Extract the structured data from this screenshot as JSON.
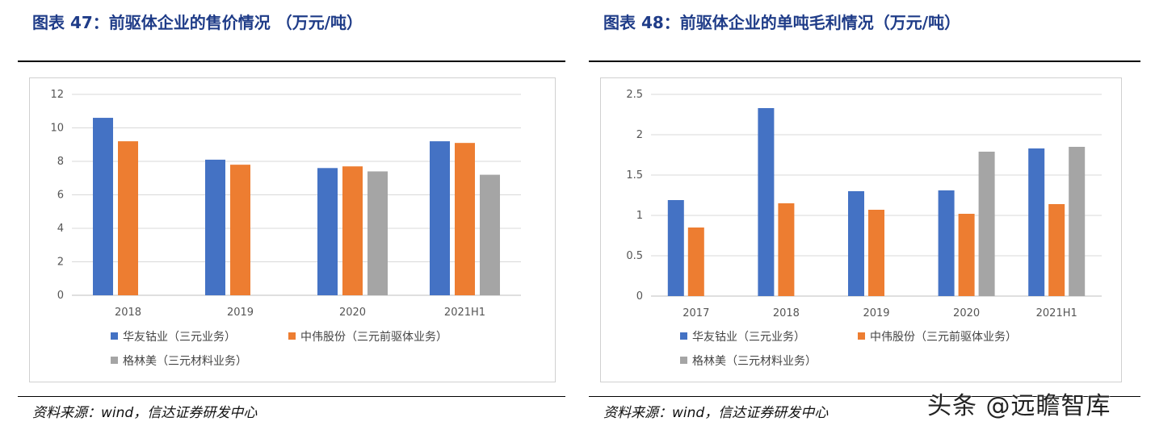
{
  "chart_data": [
    {
      "type": "bar",
      "title": "图表 47：前驱体企业的售价情况 （万元/吨）",
      "categories": [
        "2018",
        "2019",
        "2020",
        "2021H1"
      ],
      "ylim": [
        0,
        12
      ],
      "yticks": [
        0,
        2,
        4,
        6,
        8,
        10,
        12
      ],
      "grid": true,
      "legend_position": "bottom",
      "series": [
        {
          "name": "华友钴业（三元业务）",
          "color": "#4472C4",
          "values": [
            10.6,
            8.1,
            7.6,
            9.2
          ]
        },
        {
          "name": "中伟股份（三元前驱体业务）",
          "color": "#ED7D31",
          "values": [
            9.2,
            7.8,
            7.7,
            9.1
          ]
        },
        {
          "name": "格林美（三元材料业务）",
          "color": "#A5A5A5",
          "values": [
            null,
            null,
            7.4,
            7.2
          ]
        }
      ],
      "source": "资料来源：wind，信达证券研发中心"
    },
    {
      "type": "bar",
      "title": "图表 48：前驱体企业的单吨毛利情况（万元/吨）",
      "categories": [
        "2017",
        "2018",
        "2019",
        "2020",
        "2021H1"
      ],
      "ylim": [
        0,
        2.5
      ],
      "yticks": [
        0,
        0.5,
        1,
        1.5,
        2,
        2.5
      ],
      "grid": true,
      "legend_position": "bottom",
      "series": [
        {
          "name": "华友钴业（三元业务）",
          "color": "#4472C4",
          "values": [
            1.19,
            2.33,
            1.3,
            1.31,
            1.83
          ]
        },
        {
          "name": "中伟股份（三元前驱体业务）",
          "color": "#ED7D31",
          "values": [
            0.85,
            1.15,
            1.07,
            1.02,
            1.14
          ]
        },
        {
          "name": "格林美（三元材料业务）",
          "color": "#A5A5A5",
          "values": [
            null,
            null,
            null,
            1.79,
            1.85
          ]
        }
      ],
      "source": "资料来源：wind，信达证券研发中心"
    }
  ],
  "watermark": "头条 @远瞻智库"
}
